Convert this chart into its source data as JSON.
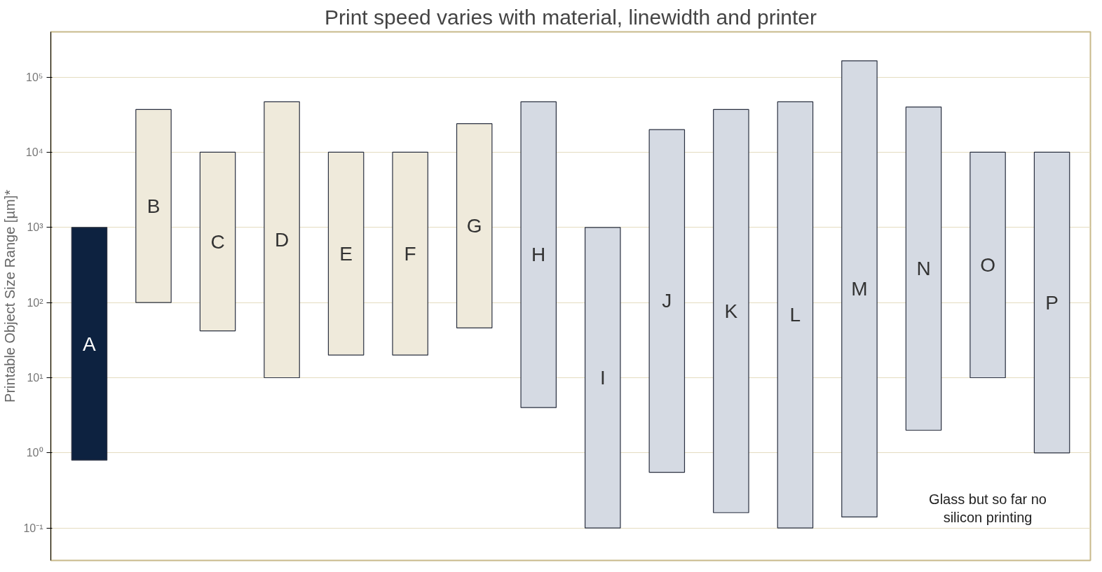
{
  "chart_data": {
    "type": "bar",
    "title": "Print speed varies with material, linewidth and printer",
    "ylabel": "Printable Object Size Range [µm]*",
    "categories": [
      "A",
      "B",
      "C",
      "D",
      "E",
      "F",
      "G",
      "H",
      "I",
      "J",
      "K",
      "L",
      "M",
      "N",
      "O",
      "P"
    ],
    "base": [
      0.8,
      100,
      42,
      10,
      20,
      20,
      46,
      4,
      0.1,
      0.55,
      0.16,
      0.1,
      0.14,
      2,
      10,
      1
    ],
    "values": [
      999.2,
      36900,
      9958,
      46990,
      9980,
      9980,
      23954,
      46996,
      999.9,
      19999.45,
      36999.84,
      46999.9,
      164999.86,
      39998,
      9990,
      9999
    ],
    "colors": [
      "#0d2240",
      "#efeadb",
      "#efeadb",
      "#efeadb",
      "#efeadb",
      "#efeadb",
      "#efeadb",
      "#d5dae3",
      "#d5dae3",
      "#d5dae3",
      "#d5dae3",
      "#d5dae3",
      "#d5dae3",
      "#d5dae3",
      "#d5dae3",
      "#d5dae3"
    ],
    "log": "y",
    "ylim": [
      0.037,
      400000
    ],
    "yticks": [
      {
        "value": 0.1,
        "label": "10⁻¹"
      },
      {
        "value": 1,
        "label": "10⁰"
      },
      {
        "value": 10,
        "label": "10¹"
      },
      {
        "value": 100,
        "label": "10²"
      },
      {
        "value": 1000,
        "label": "10³"
      },
      {
        "value": 10000,
        "label": "10⁴"
      },
      {
        "value": 100000,
        "label": "10⁵"
      }
    ],
    "grid": "y",
    "annotations": [
      "Glass but so far no silicon printing"
    ]
  }
}
